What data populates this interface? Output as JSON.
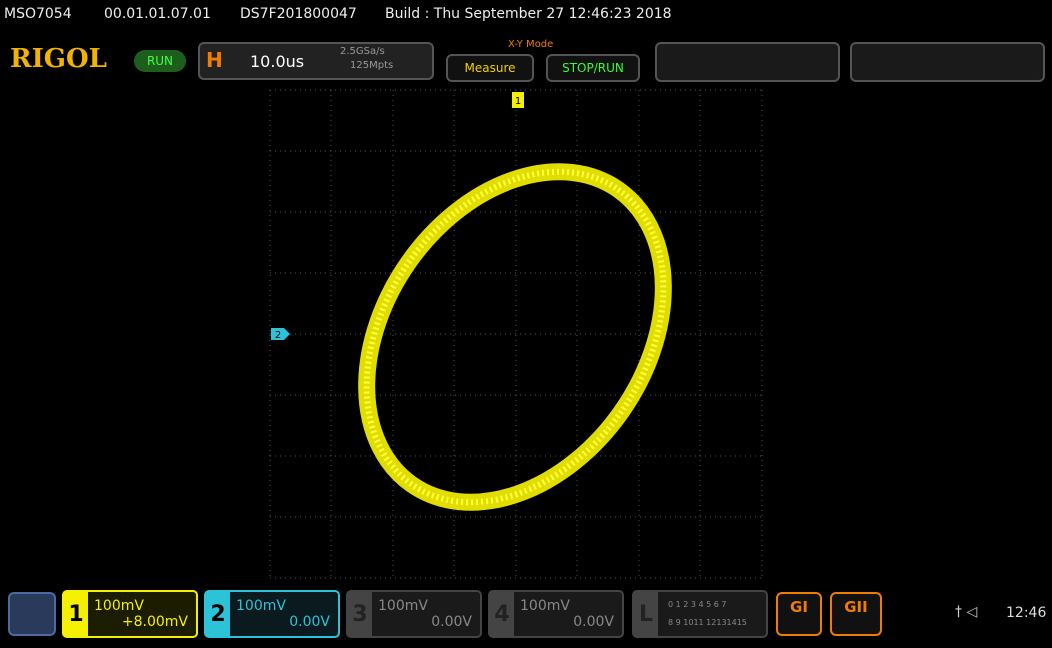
{
  "status_bar": {
    "model": "MSO7054",
    "version": "00.01.01.07.01",
    "serial": "DS7F201800047",
    "build": "Build : Thu September 27 12:46:23 2018"
  },
  "toolbar": {
    "brand": "RIGOL",
    "run_state": "RUN",
    "horizontal_key": "H",
    "timebase": "10.0us",
    "sample_rate": "2.5GSa/s",
    "memory_depth": "125Mpts",
    "mode": "X-Y Mode",
    "measure_button": "Measure",
    "stop_run_button": "STOP/RUN"
  },
  "display": {
    "trigger_marker": "1",
    "channel_marker": "2"
  },
  "channels": [
    {
      "number": "1",
      "scale": "100mV",
      "offset": "+8.00mV"
    },
    {
      "number": "2",
      "scale": "100mV",
      "offset": "0.00V"
    },
    {
      "number": "3",
      "scale": "100mV",
      "offset": "0.00V"
    },
    {
      "number": "4",
      "scale": "100mV",
      "offset": "0.00V"
    }
  ],
  "logic": {
    "label": "L",
    "row1": "0 1 2 3  4 5 6 7",
    "row2": "8 9 1011 12131415"
  },
  "generators": [
    "GI",
    "GII"
  ],
  "clock": "12:46"
}
